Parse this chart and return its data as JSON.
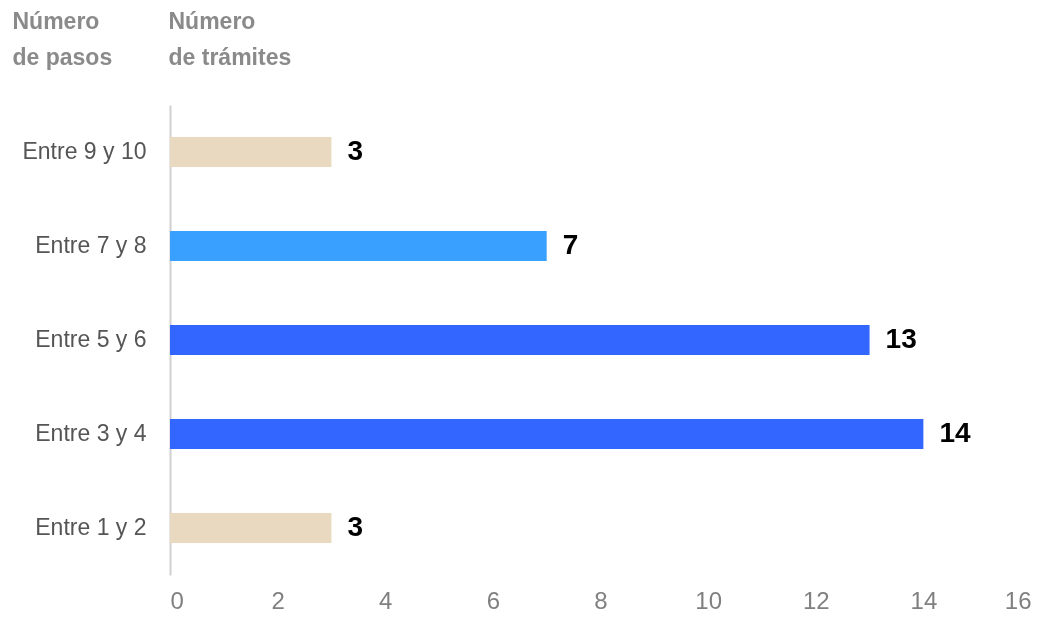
{
  "chart_data": {
    "type": "bar",
    "orientation": "horizontal",
    "xlabel": "Número de trámites",
    "ylabel": "Número de pasos",
    "categories": [
      "Entre 9 y 10",
      "Entre 7 y 8",
      "Entre 5 y 6",
      "Entre 3 y 4",
      "Entre 1 y 2"
    ],
    "values": [
      3,
      7,
      13,
      14,
      3
    ],
    "colors": [
      "#e8d9c0",
      "#3aa0ff",
      "#3366ff",
      "#3366ff",
      "#e8d9c0"
    ],
    "xlim": [
      0,
      16
    ],
    "xticks": [
      0,
      2,
      4,
      6,
      8,
      10,
      12,
      14,
      16
    ],
    "grid": false,
    "data_labels": true
  }
}
